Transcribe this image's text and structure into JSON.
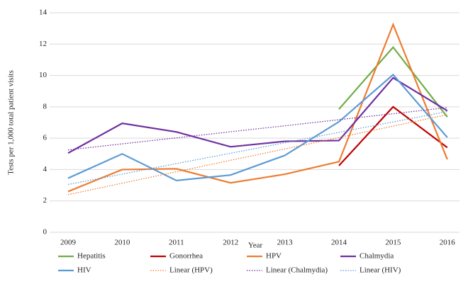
{
  "chart_data": {
    "type": "line",
    "y_label": "Tests per 1,000 total patient visits",
    "x_label": "Year",
    "categories": [
      "2009",
      "2010",
      "2011",
      "2012",
      "2013",
      "2014",
      "2015",
      "2016"
    ],
    "ylim": [
      0,
      14
    ],
    "yticks": [
      0,
      2,
      4,
      6,
      8,
      10,
      12,
      14
    ],
    "grid": true,
    "series": [
      {
        "name": "Hepatitis",
        "color": "#70ad47",
        "style": "solid",
        "values": [
          null,
          null,
          null,
          null,
          null,
          7.85,
          11.8,
          7.35
        ]
      },
      {
        "name": "Gonorrhea",
        "color": "#c00000",
        "style": "solid",
        "values": [
          null,
          null,
          null,
          null,
          null,
          4.25,
          8.0,
          5.4
        ]
      },
      {
        "name": "HPV",
        "color": "#ed7d31",
        "style": "solid",
        "values": [
          2.6,
          4.0,
          4.05,
          3.15,
          3.7,
          4.5,
          13.25,
          4.65
        ]
      },
      {
        "name": "Chalmydia",
        "color": "#7030a0",
        "style": "solid",
        "values": [
          5.05,
          6.95,
          6.4,
          5.45,
          5.8,
          5.85,
          9.85,
          7.75
        ]
      },
      {
        "name": "HIV",
        "color": "#5b9bd5",
        "style": "solid",
        "values": [
          3.45,
          5.0,
          3.3,
          3.65,
          4.9,
          7.05,
          10.05,
          6.05
        ]
      },
      {
        "name": "Linear (HPV)",
        "color": "#ed7d31",
        "style": "dotted",
        "values": [
          2.4,
          3.13,
          3.86,
          4.59,
          5.31,
          6.04,
          6.77,
          7.5
        ]
      },
      {
        "name": "Linear (Chalmydia)",
        "color": "#7030a0",
        "style": "dotted",
        "values": [
          5.25,
          5.64,
          6.02,
          6.41,
          6.79,
          7.18,
          7.56,
          7.95
        ]
      },
      {
        "name": "Linear (HIV)",
        "color": "#5b9bd5",
        "style": "dotted",
        "values": [
          3.05,
          3.71,
          4.38,
          5.04,
          5.71,
          6.37,
          7.04,
          7.7
        ]
      }
    ]
  }
}
